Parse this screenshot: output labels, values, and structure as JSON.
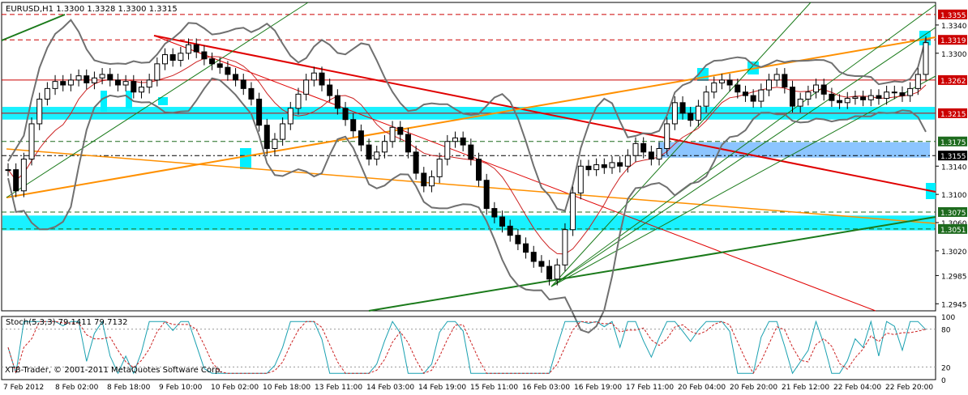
{
  "chart_data": [
    {
      "type": "candlestick",
      "symbol_line": "EURUSD,H1  1.3300 1.3328 1.3300 1.3315",
      "price_ticks": [
        "1.3340",
        "1.3300",
        "1.3140",
        "1.3100",
        "1.3060",
        "1.3020",
        "1.2985",
        "1.2945"
      ],
      "level_labels": [
        {
          "text": "1.3355",
          "price": 1.3355,
          "color": "#cc0000",
          "style": "dashed"
        },
        {
          "text": "1.3319",
          "price": 1.3319,
          "color": "#cc0000",
          "style": "dashed"
        },
        {
          "text": "1.3262",
          "price": 1.3262,
          "color": "#cc0000",
          "style": "solid"
        },
        {
          "text": "1.3215",
          "price": 1.3215,
          "color": "#cc0000",
          "style": "solid"
        },
        {
          "text": "1.3175",
          "price": 1.3175,
          "color": "#1e6b1e",
          "style": "dashed"
        },
        {
          "text": "1.3155",
          "price": 1.3155,
          "color": "#000000",
          "style": "dashdot"
        },
        {
          "text": "1.3075",
          "price": 1.3075,
          "color": "#1e6b1e",
          "style": "dashed"
        },
        {
          "text": "1.3051",
          "price": 1.3051,
          "color": "#1e6b1e",
          "style": "dashed"
        }
      ],
      "y_range": [
        1.2935,
        1.3372
      ],
      "zones": [
        {
          "from": 1.3206,
          "to": 1.3224,
          "color": "#00f0ff"
        },
        {
          "from": 1.3049,
          "to": 1.307,
          "color": "#00f0ff"
        },
        {
          "from": 1.3152,
          "to": 1.3174,
          "color": "#7fbfff"
        }
      ],
      "close_series": [
        1.3135,
        1.3105,
        1.315,
        1.32,
        1.3235,
        1.325,
        1.326,
        1.3255,
        1.3262,
        1.3268,
        1.3258,
        1.3265,
        1.327,
        1.3262,
        1.3255,
        1.326,
        1.3245,
        1.3252,
        1.3262,
        1.3285,
        1.3298,
        1.329,
        1.33,
        1.3312,
        1.3302,
        1.3292,
        1.3285,
        1.328,
        1.327,
        1.3262,
        1.325,
        1.3235,
        1.3198,
        1.3165,
        1.3178,
        1.32,
        1.3222,
        1.3242,
        1.3262,
        1.3272,
        1.3255,
        1.324,
        1.3222,
        1.3206,
        1.319,
        1.317,
        1.315,
        1.316,
        1.3175,
        1.3195,
        1.3185,
        1.316,
        1.313,
        1.3112,
        1.3125,
        1.315,
        1.3175,
        1.318,
        1.317,
        1.315,
        1.312,
        1.308,
        1.3068,
        1.3055,
        1.3042,
        1.303,
        1.3018,
        1.3005,
        1.2998,
        1.298,
        1.3,
        1.305,
        1.3102,
        1.314,
        1.3135,
        1.3142,
        1.3138,
        1.3145,
        1.314,
        1.3155,
        1.3172,
        1.316,
        1.315,
        1.3165,
        1.32,
        1.323,
        1.3215,
        1.3205,
        1.3225,
        1.3245,
        1.3258,
        1.3262,
        1.3255,
        1.3245,
        1.324,
        1.3232,
        1.3248,
        1.3262,
        1.327,
        1.3252,
        1.3225,
        1.3235,
        1.3245,
        1.3255,
        1.3242,
        1.3233,
        1.323,
        1.3236,
        1.3238,
        1.3234,
        1.324,
        1.3236,
        1.3245,
        1.3244,
        1.324,
        1.325,
        1.327,
        1.3315
      ],
      "stochastic": {
        "label": "Stoch(5,3,3) 79.1411 79.7132",
        "ticks": [
          "100",
          "80",
          "20",
          "0"
        ],
        "k_last": 79.1411,
        "d_last": 79.7132
      },
      "time_labels": [
        "7 Feb 2012",
        "8 Feb 02:00",
        "8 Feb 18:00",
        "9 Feb 10:00",
        "10 Feb 02:00",
        "10 Feb 18:00",
        "13 Feb 11:00",
        "14 Feb 03:00",
        "14 Feb 19:00",
        "15 Feb 11:00",
        "16 Feb 03:00",
        "16 Feb 19:00",
        "17 Feb 11:00",
        "20 Feb 04:00",
        "20 Feb 20:00",
        "21 Feb 12:00",
        "22 Feb 04:00",
        "22 Feb 20:00"
      ],
      "copyright": "XTB-Trader, © 2001-2011 MetaQuotes Software Corp.",
      "colors": {
        "bull": "#000000",
        "bear": "#000000",
        "band": "#707070",
        "trend_red": "#e00000",
        "trend_orange": "#ff9000",
        "trend_green": "#1a7a1a",
        "zone": "#00f0ff"
      }
    }
  ]
}
